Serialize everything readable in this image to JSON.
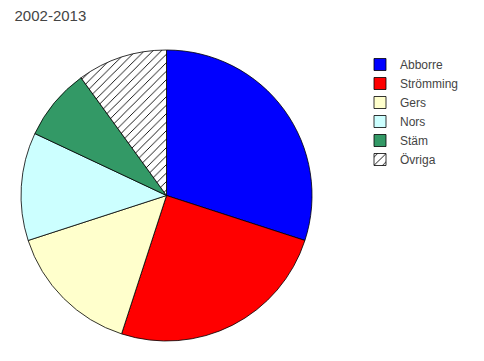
{
  "chart_data": {
    "type": "pie",
    "title": "2002-2013",
    "categories": [
      "Abborre",
      "Strömming",
      "Gers",
      "Nors",
      "Stäm",
      "Övriga"
    ],
    "values": [
      30,
      25,
      15,
      12,
      8,
      10
    ],
    "colors": [
      "#0000FF",
      "#FF0000",
      "#FFFFCC",
      "#CCFFFF",
      "#339966",
      "#FFFFFF"
    ],
    "legend": "upper right"
  }
}
